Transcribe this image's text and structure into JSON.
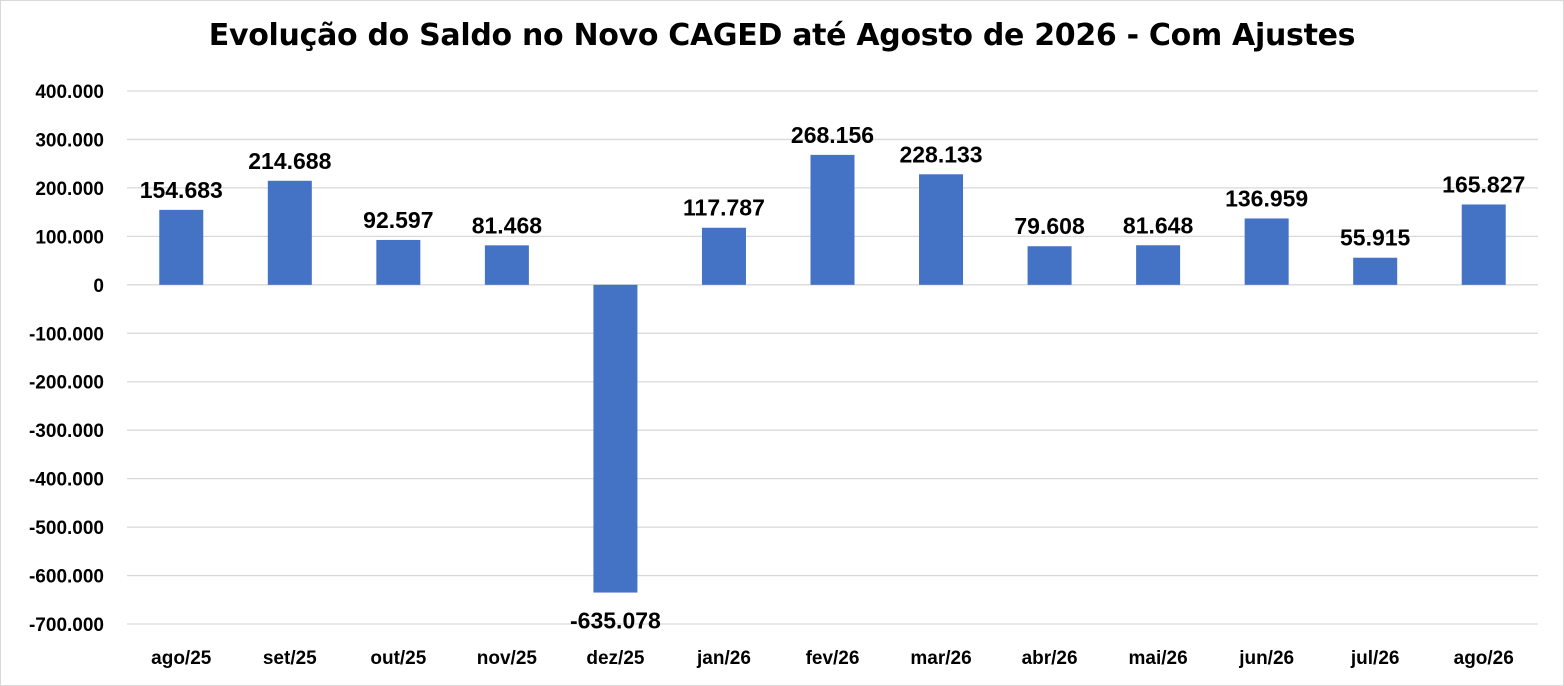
{
  "chart_data": {
    "type": "bar",
    "title": "Evolução do Saldo no Novo CAGED até Agosto de 2026 - Com Ajustes",
    "xlabel": "",
    "ylabel": "",
    "ylim": [
      -700000,
      400000
    ],
    "yticks": [
      400000,
      300000,
      200000,
      100000,
      0,
      -100000,
      -200000,
      -300000,
      -400000,
      -500000,
      -600000,
      -700000
    ],
    "ytick_labels": [
      "400.000",
      "300.000",
      "200.000",
      "100.000",
      "0",
      "-100.000",
      "-200.000",
      "-300.000",
      "-400.000",
      "-500.000",
      "-600.000",
      "-700.000"
    ],
    "categories": [
      "ago/25",
      "set/25",
      "out/25",
      "nov/25",
      "dez/25",
      "jan/26",
      "fev/26",
      "mar/26",
      "abr/26",
      "mai/26",
      "jun/26",
      "jul/26",
      "ago/26"
    ],
    "values": [
      154683,
      214688,
      92597,
      81468,
      -635078,
      117787,
      268156,
      228133,
      79608,
      81648,
      136959,
      55915,
      165827
    ],
    "data_labels": [
      "154.683",
      "214.688",
      "92.597",
      "81.468",
      "-635.078",
      "117.787",
      "268.156",
      "228.133",
      "79.608",
      "81.648",
      "136.959",
      "55.915",
      "165.827"
    ],
    "bar_color": "#4472C4",
    "grid": true,
    "legend": "none"
  }
}
